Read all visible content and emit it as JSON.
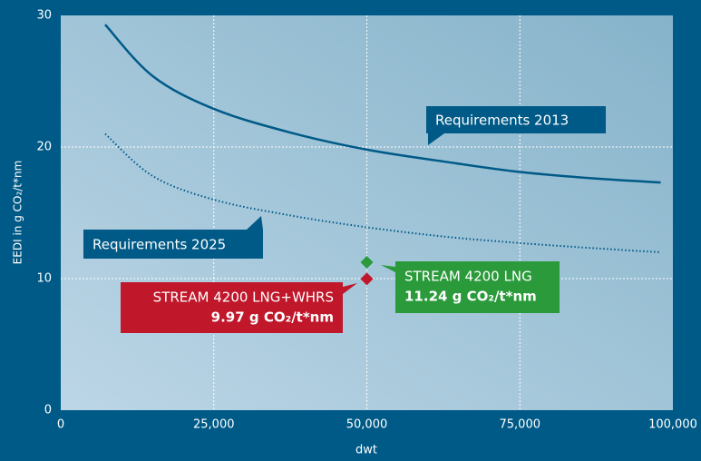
{
  "chart_data": {
    "type": "line",
    "xlabel": "dwt",
    "ylabel": "EEDI in g CO₂/t*nm",
    "xlim": [
      0,
      100000
    ],
    "ylim": [
      0,
      30
    ],
    "xticks": [
      0,
      {
        "value": 25000,
        "label": "25,000"
      },
      {
        "value": 50000,
        "label": "50,000"
      },
      {
        "value": 75000,
        "label": "75,000"
      },
      {
        "value": 100000,
        "label": "100,000"
      }
    ],
    "yticks": [
      0,
      10,
      20,
      30
    ],
    "grid": true,
    "series": [
      {
        "name": "Requirements 2013",
        "color": "#005a87",
        "style": "solid",
        "x": [
          7259,
          15000,
          25000,
          37500,
          50000,
          62500,
          75000,
          87500,
          98000
        ],
        "values": [
          29.3,
          25.4,
          22.9,
          21.1,
          19.8,
          18.9,
          18.1,
          17.6,
          17.3
        ]
      },
      {
        "name": "Requirements 2025",
        "color": "#005a87",
        "style": "dotted",
        "x": [
          7259,
          15000,
          25000,
          37500,
          50000,
          62500,
          75000,
          87500,
          98000
        ],
        "values": [
          21.0,
          17.8,
          16.0,
          14.8,
          13.9,
          13.2,
          12.7,
          12.3,
          12.0
        ]
      },
      {
        "name": "STREAM 4200 LNG",
        "color": "#2a9a3a",
        "style": "point",
        "x": [
          50000
        ],
        "values": [
          11.24
        ],
        "value_labels": [
          "11.24 g CO₂/t*nm"
        ]
      },
      {
        "name": "STREAM 4200 LNG+WHRS",
        "color": "#c0172b",
        "style": "point",
        "x": [
          50000
        ],
        "values": [
          9.97
        ],
        "value_labels": [
          "9.97 g CO₂/t*nm"
        ]
      }
    ]
  }
}
